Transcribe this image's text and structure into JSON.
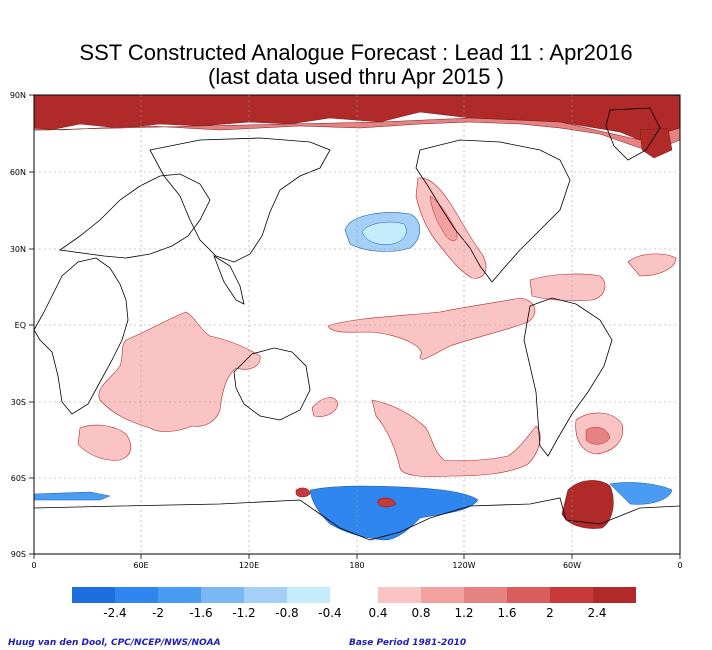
{
  "title": {
    "line1": "SST Constructed Analogue Forecast : Lead 11 : Apr2016",
    "line2": "(last data used thru Apr 2015 )"
  },
  "axes": {
    "lat_labels": [
      "90N",
      "60N",
      "30N",
      "EQ",
      "30S",
      "60S",
      "90S"
    ],
    "lon_labels": [
      "0",
      "60E",
      "120E",
      "180",
      "120W",
      "60W",
      "0"
    ]
  },
  "legend": {
    "labels": [
      "-2.4",
      "-2",
      "-1.6",
      "-1.2",
      "-0.8",
      "-0.4",
      "0.4",
      "0.8",
      "1.2",
      "1.6",
      "2",
      "2.4"
    ],
    "negative_colors": [
      "#1f6ee0",
      "#2f86ee",
      "#4a9cf2",
      "#7ab8f5",
      "#a4d0f8",
      "#c5ecfb"
    ],
    "positive_colors": [
      "#fbc4c4",
      "#f2a0a0",
      "#e68282",
      "#d85e5e",
      "#c83a3a",
      "#b02a2a"
    ]
  },
  "footer": {
    "credit": "Huug van den Dool, CPC/NCEP/NWS/NOAA",
    "base_period": "Base Period 1981-2010"
  },
  "colors": {
    "land_outline": "#000000",
    "grid": "#999999",
    "frame": "#000000"
  }
}
